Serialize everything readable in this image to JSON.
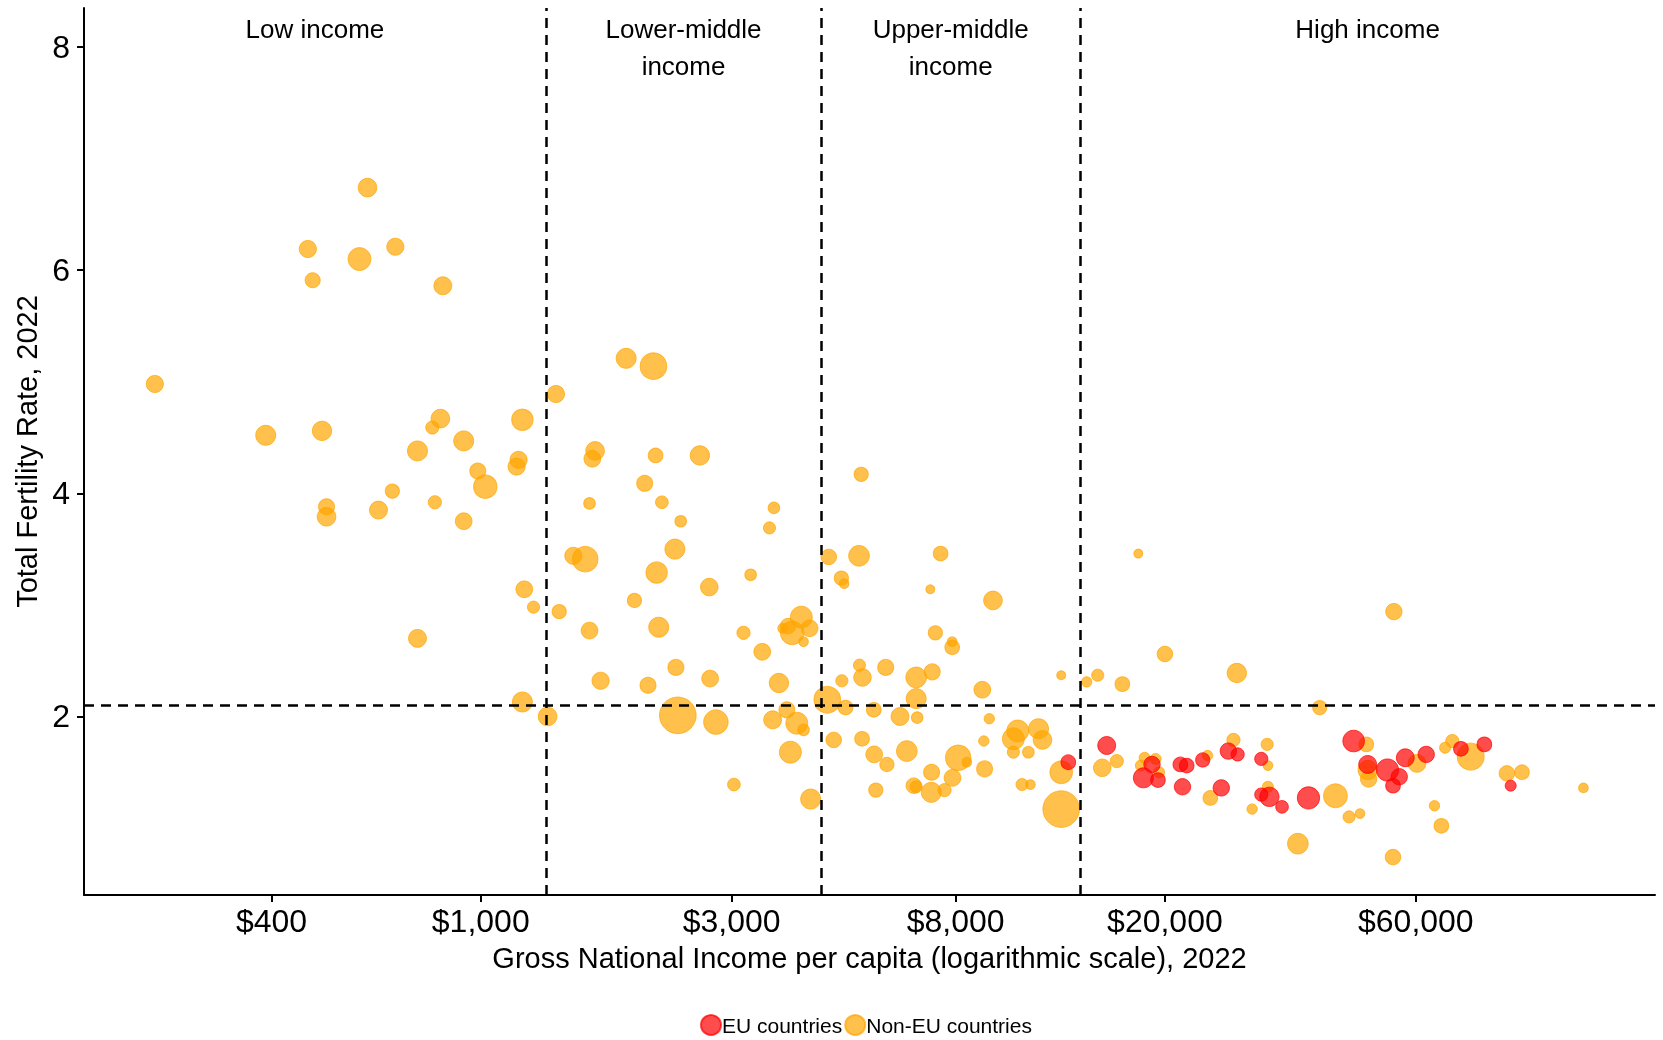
{
  "chart_data": {
    "type": "bubble",
    "xlabel": "Gross National Income per capita (logarithmic scale), 2022",
    "ylabel": "Total Fertility Rate, 2022",
    "annotations": [
      "Low income",
      "Lower-middle\nincome",
      "Upper-middle\nincome",
      "High income"
    ],
    "log": "x",
    "legend": "bottom",
    "marker": "circle",
    "xlim": [
      176,
      171000
    ],
    "ylim": [
      0.4,
      8.35
    ],
    "xticks": [
      {
        "value": 400,
        "label": "$400"
      },
      {
        "value": 1000,
        "label": "$1,000"
      },
      {
        "value": 3000,
        "label": "$3,000"
      },
      {
        "value": 8000,
        "label": "$8,000"
      },
      {
        "value": 20000,
        "label": "$20,000"
      },
      {
        "value": 60000,
        "label": "$60,000"
      }
    ],
    "yticks": [
      2,
      4,
      6,
      8
    ],
    "ref_lines": [
      {
        "axis": "x",
        "value": 1330,
        "color": "#000000",
        "line_style": "dashed"
      },
      {
        "axis": "x",
        "value": 4440,
        "color": "#000000",
        "line_style": "dashed"
      },
      {
        "axis": "x",
        "value": 13800,
        "color": "#000000",
        "line_style": "dashed"
      },
      {
        "axis": "y",
        "value": 2.1,
        "color": "#000000",
        "line_style": "dashed"
      }
    ],
    "series": [
      {
        "name": "EU countries",
        "color": "#ff0000",
        "x": [
          13100,
          15500,
          18200,
          18900,
          19400,
          21400,
          21600,
          22000,
          23600,
          25600,
          26400,
          27500,
          30500,
          30500,
          31600,
          33400,
          37500,
          45700,
          48600,
          53000,
          54300,
          55800,
          57300,
          62800,
          73100,
          81000,
          90900
        ],
        "values": [
          1.59,
          1.74,
          1.45,
          1.57,
          1.43,
          1.57,
          1.37,
          1.56,
          1.61,
          1.36,
          1.69,
          1.66,
          1.62,
          1.3,
          1.28,
          1.19,
          1.27,
          1.78,
          1.57,
          1.52,
          1.38,
          1.46,
          1.63,
          1.66,
          1.71,
          1.75,
          1.38
        ],
        "sizes": [
          0.16,
          0.24,
          0.3,
          0.2,
          0.16,
          0.16,
          0.2,
          0.16,
          0.15,
          0.2,
          0.2,
          0.13,
          0.13,
          0.13,
          0.28,
          0.12,
          0.37,
          0.35,
          0.24,
          0.37,
          0.16,
          0.2,
          0.24,
          0.2,
          0.16,
          0.16,
          0.09
        ]
      },
      {
        "name": "Non-EU countries",
        "color": "#ffa500",
        "x": [
          240,
          390,
          469,
          479,
          499,
          509,
          509,
          588,
          609,
          639,
          679,
          688,
          758,
          758,
          809,
          818,
          838,
          847,
          928,
          928,
          987,
          1020,
          1170,
          1180,
          1200,
          1200,
          1210,
          1260,
          1340,
          1390,
          1410,
          1500,
          1580,
          1610,
          1610,
          1630,
          1650,
          1690,
          1890,
          1960,
          2050,
          2080,
          2130,
          2150,
          2160,
          2180,
          2210,
          2340,
          2350,
          2370,
          2400,
          2610,
          2720,
          2730,
          2800,
          3030,
          3160,
          3260,
          3430,
          3540,
          3590,
          3610,
          3690,
          3750,
          3820,
          3840,
          3880,
          3910,
          3990,
          4070,
          4110,
          4110,
          4220,
          4240,
          4560,
          4590,
          4690,
          4850,
          4860,
          4910,
          4940,
          5240,
          5250,
          5290,
          5310,
          5320,
          5590,
          5600,
          5640,
          5890,
          5920,
          6270,
          6460,
          6660,
          6730,
          6730,
          6730,
          6760,
          7160,
          7190,
          7200,
          7220,
          7320,
          7490,
          7620,
          7880,
          7880,
          7890,
          8090,
          8400,
          8990,
          9050,
          9080,
          9270,
          9420,
          10300,
          10300,
          10500,
          10700,
          11000,
          11100,
          11500,
          11700,
          12700,
          12700,
          12700,
          14200,
          14900,
          15200,
          16200,
          16600,
          17800,
          18000,
          18300,
          19200,
          19500,
          20000,
          24100,
          24400,
          27000,
          27400,
          29300,
          31300,
          31400,
          31400,
          35800,
          39400,
          42200,
          44800,
          47000,
          48300,
          48600,
          48800,
          54500,
          54300,
          60300,
          65100,
          67100,
          68200,
          70400,
          76300,
          89400,
          95500,
          125000
        ],
        "values": [
          4.98,
          4.52,
          6.19,
          5.91,
          4.56,
          3.88,
          3.79,
          6.1,
          6.74,
          3.85,
          4.02,
          6.21,
          4.38,
          2.7,
          4.59,
          3.92,
          4.67,
          5.86,
          4.47,
          3.75,
          4.2,
          4.06,
          4.24,
          4.3,
          4.66,
          2.13,
          3.14,
          2.98,
          2.0,
          4.89,
          2.94,
          3.44,
          3.41,
          3.91,
          2.77,
          4.31,
          4.38,
          2.32,
          5.21,
          3.04,
          4.09,
          2.28,
          5.14,
          4.34,
          3.29,
          2.8,
          3.92,
          3.5,
          2.44,
          2.01,
          3.75,
          4.34,
          3.16,
          2.34,
          1.95,
          1.39,
          2.75,
          3.27,
          2.58,
          3.69,
          1.97,
          3.87,
          2.3,
          2.79,
          2.06,
          2.81,
          1.68,
          2.75,
          1.94,
          2.89,
          2.67,
          1.88,
          2.79,
          1.26,
          2.15,
          3.43,
          1.79,
          3.24,
          2.32,
          3.19,
          2.08,
          3.44,
          2.46,
          4.17,
          1.8,
          2.35,
          2.06,
          1.66,
          1.34,
          2.44,
          1.57,
          2.0,
          1.69,
          1.38,
          2.35,
          2.16,
          1.37,
          1.99,
          3.14,
          1.32,
          1.5,
          2.4,
          2.75,
          3.46,
          1.34,
          2.67,
          2.62,
          1.45,
          1.63,
          1.59,
          2.24,
          1.78,
          1.53,
          1.98,
          3.04,
          1.8,
          1.68,
          1.87,
          1.39,
          1.68,
          1.39,
          1.89,
          1.79,
          2.37,
          1.5,
          1.17,
          2.31,
          2.37,
          1.54,
          1.6,
          2.29,
          3.46,
          1.56,
          1.63,
          1.62,
          1.5,
          2.56,
          1.65,
          1.27,
          1.79,
          2.39,
          1.17,
          1.75,
          1.56,
          1.37,
          0.86,
          2.08,
          1.29,
          1.1,
          1.13,
          1.75,
          1.52,
          1.44,
          2.94,
          0.74,
          1.58,
          1.2,
          1.02,
          1.72,
          1.78,
          1.64,
          1.49,
          1.5,
          1.36
        ],
        "sizes": [
          0.22,
          0.3,
          0.22,
          0.17,
          0.28,
          0.19,
          0.26,
          0.39,
          0.26,
          0.24,
          0.15,
          0.22,
          0.3,
          0.24,
          0.13,
          0.13,
          0.26,
          0.24,
          0.3,
          0.21,
          0.19,
          0.41,
          0.22,
          0.22,
          0.34,
          0.3,
          0.21,
          0.11,
          0.26,
          0.22,
          0.15,
          0.22,
          0.48,
          0.1,
          0.21,
          0.21,
          0.26,
          0.22,
          0.3,
          0.15,
          0.19,
          0.19,
          0.53,
          0.16,
          0.34,
          0.3,
          0.12,
          0.3,
          0.19,
          1,
          0.1,
          0.28,
          0.23,
          0.21,
          0.45,
          0.12,
          0.13,
          0.1,
          0.21,
          0.11,
          0.24,
          0.1,
          0.28,
          0.07,
          0.19,
          0.18,
          0.36,
          0.41,
          0.36,
          0.36,
          0.07,
          0.1,
          0.21,
          0.3,
          0.53,
          0.18,
          0.18,
          0.15,
          0.11,
          0.07,
          0.16,
          0.32,
          0.11,
          0.15,
          0.16,
          0.23,
          0.16,
          0.21,
          0.15,
          0.19,
          0.15,
          0.24,
          0.32,
          0.18,
          0.32,
          0.3,
          0.11,
          0.1,
          0.06,
          0.3,
          0.19,
          0.19,
          0.15,
          0.16,
          0.13,
          0.07,
          0.16,
          0.21,
          0.48,
          0.07,
          0.21,
          0.08,
          0.19,
          0.08,
          0.26,
          0.36,
          0.11,
          0.36,
          0.11,
          0.1,
          0.07,
          0.3,
          0.26,
          0.06,
          0.38,
          1,
          0.08,
          0.11,
          0.23,
          0.13,
          0.16,
          0.06,
          0.09,
          0.09,
          0.09,
          0.09,
          0.18,
          0.08,
          0.16,
          0.13,
          0.28,
          0.08,
          0.11,
          0.07,
          0.09,
          0.32,
          0.15,
          0.42,
          0.11,
          0.07,
          0.16,
          0.28,
          0.2,
          0.2,
          0.18,
          0.24,
          0.08,
          0.16,
          0.09,
          0.13,
          0.54,
          0.18,
          0.16,
          0.07
        ]
      }
    ]
  }
}
